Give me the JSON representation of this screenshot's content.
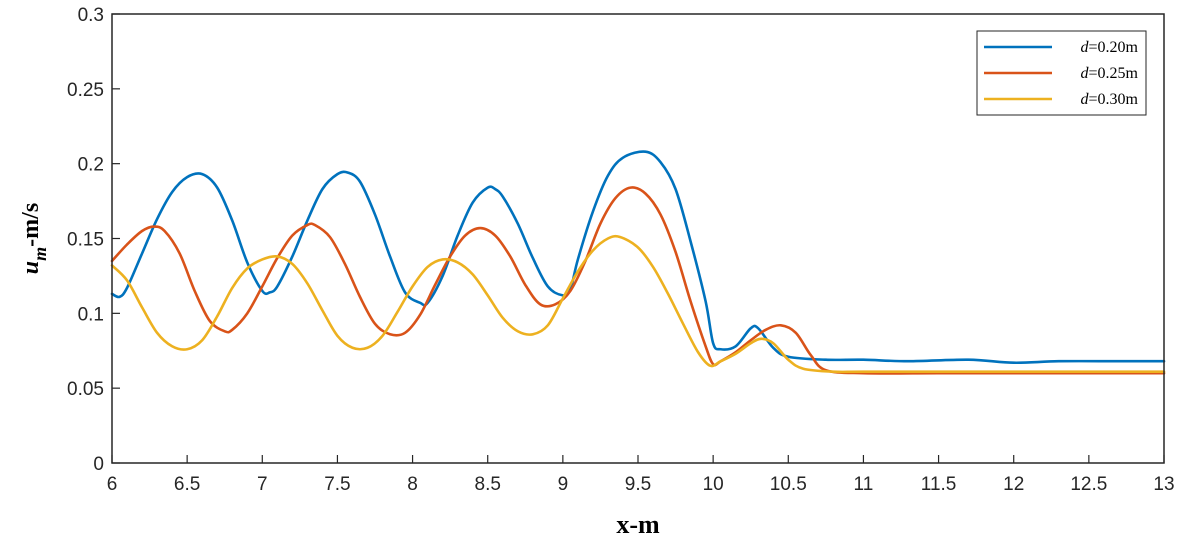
{
  "chart_data": {
    "type": "line",
    "title": "",
    "xlabel": "x-m",
    "ylabel": {
      "main": "u",
      "sub": "m",
      "unit": "-m/s"
    },
    "xlim": [
      6,
      13
    ],
    "ylim": [
      0,
      0.3
    ],
    "xticks": [
      "6",
      "6.5",
      "7",
      "7.5",
      "8",
      "8.5",
      "9",
      "9.5",
      "10",
      "10.5",
      "11",
      "11.5",
      "12",
      "12.5",
      "13"
    ],
    "yticks": [
      "0",
      "0.05",
      "0.1",
      "0.15",
      "0.2",
      "0.25",
      "0.3"
    ],
    "grid": false,
    "legend_position": "top-right",
    "series": [
      {
        "name": "d=0.20m",
        "label_italic": "d",
        "label_rest": "=0.20m",
        "color": "#0072BD",
        "points": [
          [
            6,
            0.113
          ],
          [
            6.05,
            0.111
          ],
          [
            6.1,
            0.117
          ],
          [
            6.2,
            0.14
          ],
          [
            6.3,
            0.163
          ],
          [
            6.4,
            0.181
          ],
          [
            6.5,
            0.191
          ],
          [
            6.6,
            0.193
          ],
          [
            6.7,
            0.184
          ],
          [
            6.8,
            0.162
          ],
          [
            6.9,
            0.134
          ],
          [
            7.0,
            0.115
          ],
          [
            7.05,
            0.114
          ],
          [
            7.1,
            0.118
          ],
          [
            7.2,
            0.138
          ],
          [
            7.3,
            0.162
          ],
          [
            7.4,
            0.183
          ],
          [
            7.5,
            0.193
          ],
          [
            7.57,
            0.194
          ],
          [
            7.65,
            0.188
          ],
          [
            7.75,
            0.166
          ],
          [
            7.85,
            0.138
          ],
          [
            7.95,
            0.114
          ],
          [
            8.05,
            0.107
          ],
          [
            8.1,
            0.107
          ],
          [
            8.2,
            0.125
          ],
          [
            8.3,
            0.152
          ],
          [
            8.4,
            0.174
          ],
          [
            8.5,
            0.184
          ],
          [
            8.55,
            0.183
          ],
          [
            8.6,
            0.178
          ],
          [
            8.7,
            0.16
          ],
          [
            8.8,
            0.137
          ],
          [
            8.9,
            0.118
          ],
          [
            9.0,
            0.112
          ],
          [
            9.05,
            0.116
          ],
          [
            9.1,
            0.136
          ],
          [
            9.2,
            0.168
          ],
          [
            9.3,
            0.192
          ],
          [
            9.4,
            0.204
          ],
          [
            9.55,
            0.208
          ],
          [
            9.65,
            0.201
          ],
          [
            9.75,
            0.183
          ],
          [
            9.85,
            0.148
          ],
          [
            9.95,
            0.108
          ],
          [
            10.0,
            0.08
          ],
          [
            10.05,
            0.076
          ],
          [
            10.15,
            0.078
          ],
          [
            10.25,
            0.09
          ],
          [
            10.3,
            0.09
          ],
          [
            10.4,
            0.077
          ],
          [
            10.5,
            0.071
          ],
          [
            10.75,
            0.069
          ],
          [
            11.0,
            0.069
          ],
          [
            11.3,
            0.068
          ],
          [
            11.7,
            0.069
          ],
          [
            12.0,
            0.067
          ],
          [
            12.3,
            0.068
          ],
          [
            12.7,
            0.068
          ],
          [
            13.0,
            0.068
          ]
        ]
      },
      {
        "name": "d=0.25m",
        "label_italic": "d",
        "label_rest": "=0.25m",
        "color": "#D95319",
        "points": [
          [
            6,
            0.135
          ],
          [
            6.1,
            0.146
          ],
          [
            6.2,
            0.155
          ],
          [
            6.28,
            0.158
          ],
          [
            6.35,
            0.155
          ],
          [
            6.45,
            0.14
          ],
          [
            6.55,
            0.115
          ],
          [
            6.65,
            0.095
          ],
          [
            6.75,
            0.088
          ],
          [
            6.8,
            0.089
          ],
          [
            6.9,
            0.1
          ],
          [
            7.0,
            0.118
          ],
          [
            7.1,
            0.137
          ],
          [
            7.2,
            0.152
          ],
          [
            7.3,
            0.159
          ],
          [
            7.35,
            0.159
          ],
          [
            7.45,
            0.151
          ],
          [
            7.55,
            0.133
          ],
          [
            7.65,
            0.111
          ],
          [
            7.75,
            0.093
          ],
          [
            7.85,
            0.086
          ],
          [
            7.95,
            0.087
          ],
          [
            8.05,
            0.099
          ],
          [
            8.15,
            0.119
          ],
          [
            8.25,
            0.138
          ],
          [
            8.35,
            0.152
          ],
          [
            8.45,
            0.157
          ],
          [
            8.55,
            0.152
          ],
          [
            8.65,
            0.138
          ],
          [
            8.75,
            0.119
          ],
          [
            8.85,
            0.106
          ],
          [
            8.95,
            0.106
          ],
          [
            9.05,
            0.115
          ],
          [
            9.15,
            0.135
          ],
          [
            9.25,
            0.16
          ],
          [
            9.35,
            0.177
          ],
          [
            9.45,
            0.184
          ],
          [
            9.55,
            0.18
          ],
          [
            9.65,
            0.166
          ],
          [
            9.75,
            0.141
          ],
          [
            9.85,
            0.108
          ],
          [
            9.95,
            0.078
          ],
          [
            10.0,
            0.066
          ],
          [
            10.05,
            0.068
          ],
          [
            10.15,
            0.074
          ],
          [
            10.25,
            0.082
          ],
          [
            10.35,
            0.089
          ],
          [
            10.45,
            0.092
          ],
          [
            10.55,
            0.087
          ],
          [
            10.65,
            0.072
          ],
          [
            10.75,
            0.062
          ],
          [
            11.0,
            0.06
          ],
          [
            11.5,
            0.06
          ],
          [
            12.0,
            0.06
          ],
          [
            12.5,
            0.06
          ],
          [
            13.0,
            0.06
          ]
        ]
      },
      {
        "name": "d=0.30m",
        "label_italic": "d",
        "label_rest": "=0.30m",
        "color": "#EDB120",
        "points": [
          [
            6,
            0.132
          ],
          [
            6.1,
            0.122
          ],
          [
            6.2,
            0.104
          ],
          [
            6.3,
            0.087
          ],
          [
            6.4,
            0.078
          ],
          [
            6.5,
            0.076
          ],
          [
            6.6,
            0.082
          ],
          [
            6.7,
            0.098
          ],
          [
            6.8,
            0.117
          ],
          [
            6.9,
            0.13
          ],
          [
            7.0,
            0.136
          ],
          [
            7.1,
            0.138
          ],
          [
            7.2,
            0.133
          ],
          [
            7.3,
            0.12
          ],
          [
            7.4,
            0.102
          ],
          [
            7.5,
            0.085
          ],
          [
            7.6,
            0.077
          ],
          [
            7.7,
            0.077
          ],
          [
            7.8,
            0.085
          ],
          [
            7.9,
            0.101
          ],
          [
            8.0,
            0.118
          ],
          [
            8.1,
            0.131
          ],
          [
            8.2,
            0.136
          ],
          [
            8.3,
            0.134
          ],
          [
            8.4,
            0.126
          ],
          [
            8.5,
            0.112
          ],
          [
            8.6,
            0.097
          ],
          [
            8.7,
            0.088
          ],
          [
            8.8,
            0.086
          ],
          [
            8.9,
            0.092
          ],
          [
            9.0,
            0.11
          ],
          [
            9.1,
            0.128
          ],
          [
            9.2,
            0.142
          ],
          [
            9.3,
            0.15
          ],
          [
            9.38,
            0.151
          ],
          [
            9.5,
            0.144
          ],
          [
            9.6,
            0.131
          ],
          [
            9.7,
            0.113
          ],
          [
            9.8,
            0.093
          ],
          [
            9.9,
            0.074
          ],
          [
            9.98,
            0.065
          ],
          [
            10.05,
            0.068
          ],
          [
            10.15,
            0.073
          ],
          [
            10.25,
            0.08
          ],
          [
            10.32,
            0.083
          ],
          [
            10.4,
            0.08
          ],
          [
            10.5,
            0.069
          ],
          [
            10.6,
            0.063
          ],
          [
            10.8,
            0.061
          ],
          [
            11.0,
            0.061
          ],
          [
            11.5,
            0.061
          ],
          [
            12.0,
            0.061
          ],
          [
            12.5,
            0.061
          ],
          [
            13.0,
            0.061
          ]
        ]
      }
    ]
  }
}
